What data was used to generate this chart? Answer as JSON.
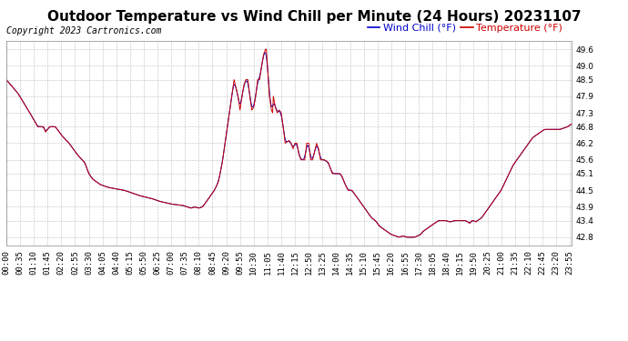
{
  "title": "Outdoor Temperature vs Wind Chill per Minute (24 Hours) 20231107",
  "copyright": "Copyright 2023 Cartronics.com",
  "legend_wind_chill": "Wind Chill (°F)",
  "legend_temperature": "Temperature (°F)",
  "wind_chill_color": "#0000cc",
  "temperature_color": "#cc0000",
  "background_color": "#ffffff",
  "grid_color": "#aaaaaa",
  "ylim_min": 42.5,
  "ylim_max": 49.9,
  "yticks": [
    42.8,
    43.4,
    43.9,
    44.5,
    45.1,
    45.6,
    46.2,
    46.8,
    47.3,
    47.9,
    48.5,
    49.0,
    49.6
  ],
  "title_fontsize": 11,
  "copyright_fontsize": 7,
  "legend_fontsize": 8,
  "tick_fontsize": 6.5
}
